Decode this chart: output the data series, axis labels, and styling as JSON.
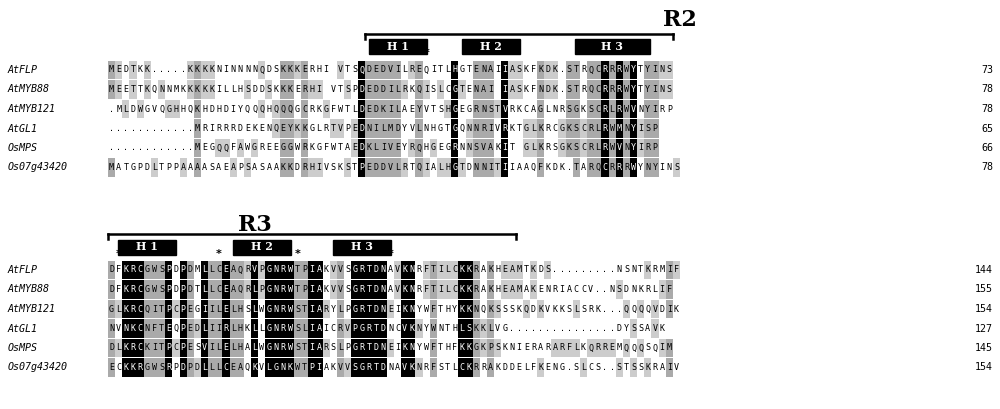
{
  "bg_color": "#ffffff",
  "title_r2": "R2",
  "title_r3": "R3",
  "species": [
    "AtFLP",
    "AtMYB88",
    "AtMYB121",
    "AtGL1",
    "OsMPS",
    "Os07g43420"
  ],
  "r2_seq": [
    "MEDTKK.....KKKKNINNNNQDSKKKERHI VTSQDEDVILREQITLHGTENAIIASKFKDK.STRQCRRRWYTYINS",
    "MEETTKQNNMKKKKKILLHSDDSKKKERHI VTSPDEDDILRKQISLCGTENAI IASKFNDK.STRQCRRRWYTYINS",
    ".MLDWGVQGHHQKHDHDIYQQQHQQQGCRKGFWTLDEDKILAEYVTSHGEGRNSTVRKCAGLNRSGKSCRLRWVNYIRP",
    "............MRIRRRDEKENQEYKKGLRTVPEDNILMDYVLNHGTGQNNRIVRKTGLKRCGKSCRLRWMNYISP",
    "............MEGQQFAWGREEGGWRKGFWTAEDKLIVEYRQHGEGRNNSVAKIT GLKRSGKSCRLRWVNYIRP",
    "MATGPDLTPPAAAASAEAPSASAAKKDRHIVSKSTPEDDVLRTQIALHGTDNNITIIAAQFKDK.TARQCRRRWYNYINS"
  ],
  "r2_num": [
    73,
    78,
    78,
    65,
    66,
    78
  ],
  "r3_seq": [
    "DFKRCGWSPDPDMLLCEAQRVPGNRWTPIAKVVSGRTDNAVKNRFTILCKKRAKHEAMTKDS.........NSNTKRMIF",
    "DFKRCGWSPDPDTLLCEAQRLPGNRWTPIAKVVSGRTDNAVKNRFTILCKKRAKHEAMAKENRIACCV..NSDNKRLIF",
    "GLKRCQITPCPEGIILELHSLWGNRWSTIARYLPGRTDNEIKNYWFTHYKKNQKSSSKQDKVKKSLSRK...QQQQVDIK",
    "NVNKCNFTEQPEDLIIRLHKLLGNRWSLIAICRVPGRTDNCVKNYWNTHLSKKLVG...............DYSSAVK",
    "DLKRCKITPCPESVILELHALWGNRWSTIARSLPGRTDNEIKNYWFTHFKKGKPSKNIERARARFLKQRREMQQQSQIM",
    "ECKKRGWSRPDPDLLLCEAQKVLGNKWTPIAKVVSGRTDNAVKNRFSTLCKRRAKDDELFKENG.SLCS..STSSKRAIV"
  ],
  "r3_num": [
    144,
    155,
    154,
    127,
    145,
    154
  ],
  "seq_font_size": 6.0,
  "label_font_size": 7.2,
  "number_font_size": 7.2,
  "helix_font_size": 8.0,
  "title_font_size": 16
}
